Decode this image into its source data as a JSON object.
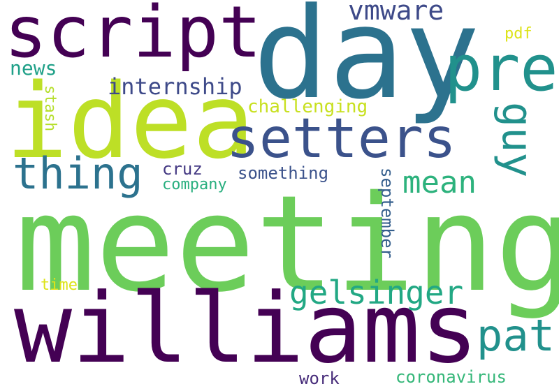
{
  "words": {
    "meeting": {
      "text": "meeting",
      "color": "#6ccd5a"
    },
    "williams": {
      "text": "williams",
      "color": "#440154"
    },
    "day": {
      "text": "day",
      "color": "#2c728e"
    },
    "idea": {
      "text": "idea",
      "color": "#bddf26"
    },
    "script": {
      "text": "script",
      "color": "#440154"
    },
    "setters": {
      "text": "setters",
      "color": "#3b528b"
    },
    "pre": {
      "text": "pre",
      "color": "#21918c"
    },
    "thing": {
      "text": "thing",
      "color": "#2c728e"
    },
    "guy": {
      "text": "guy",
      "color": "#21918c"
    },
    "pat": {
      "text": "pat",
      "color": "#21918c"
    },
    "gelsinger": {
      "text": "gelsinger",
      "color": "#22a884"
    },
    "mean": {
      "text": "mean",
      "color": "#2db27d"
    },
    "internship": {
      "text": "internship",
      "color": "#3e4a89"
    },
    "vmware": {
      "text": "vmware",
      "color": "#3e4a89"
    },
    "news": {
      "text": "news",
      "color": "#1fa088"
    },
    "challenging": {
      "text": "challenging",
      "color": "#c8e020"
    },
    "cruz": {
      "text": "cruz",
      "color": "#443983"
    },
    "something": {
      "text": "something",
      "color": "#3b528b"
    },
    "company": {
      "text": "company",
      "color": "#29af7f"
    },
    "september": {
      "text": "september",
      "color": "#355f8d"
    },
    "stash": {
      "text": "stash",
      "color": "#b5de2b"
    },
    "pdf": {
      "text": "pdf",
      "color": "#dde318"
    },
    "time": {
      "text": "time",
      "color": "#dde318"
    },
    "work": {
      "text": "work",
      "color": "#472c7a"
    },
    "coronavirus": {
      "text": "coronavirus",
      "color": "#35b779"
    }
  }
}
